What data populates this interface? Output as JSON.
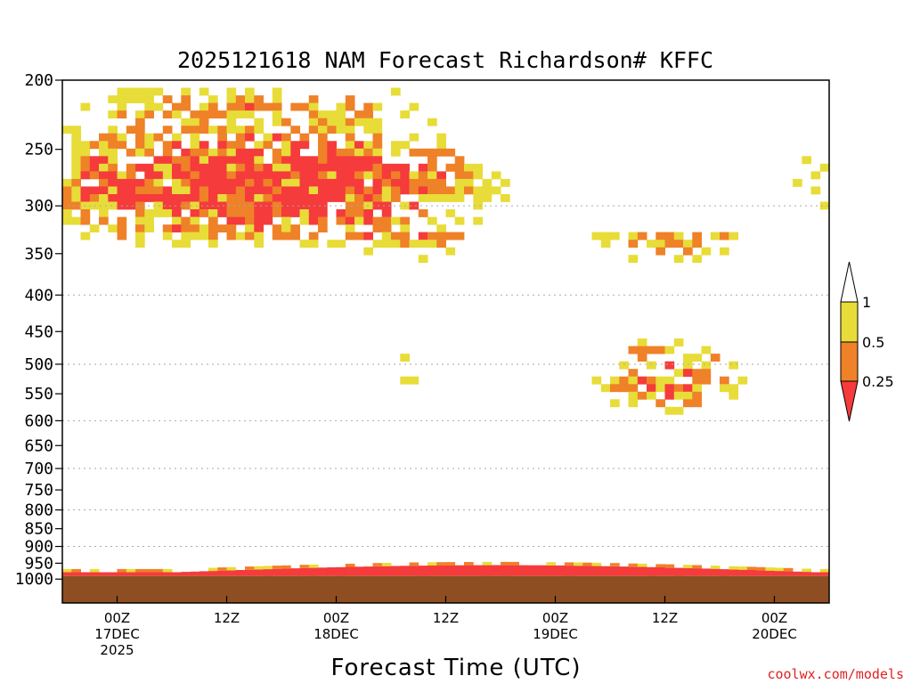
{
  "chart_data": {
    "type": "heatmap",
    "title": "2025121618 NAM Forecast Richardson# KFFC",
    "xlabel": "Forecast Time (UTC)",
    "ylabel": "",
    "y_scale": "log-pressure",
    "y_axis_inverted": true,
    "ylim": [
      1000,
      200
    ],
    "y_ticks": [
      200,
      250,
      300,
      350,
      400,
      450,
      500,
      550,
      600,
      650,
      700,
      750,
      800,
      850,
      900,
      950,
      1000
    ],
    "y_gridlines": [
      300,
      400,
      500,
      600,
      700,
      800,
      900
    ],
    "grid": true,
    "x_ticks": [
      {
        "lines": [
          "00Z",
          "17DEC",
          "2025"
        ]
      },
      {
        "lines": [
          "12Z"
        ]
      },
      {
        "lines": [
          "00Z",
          "18DEC"
        ]
      },
      {
        "lines": [
          "12Z"
        ]
      },
      {
        "lines": [
          "00Z",
          "19DEC"
        ]
      },
      {
        "lines": [
          "12Z"
        ]
      },
      {
        "lines": [
          "00Z",
          "20DEC"
        ]
      }
    ],
    "x_tick_hours": [
      6,
      18,
      30,
      42,
      54,
      66,
      78
    ],
    "xlim_hours": [
      0,
      84
    ],
    "colorbar": {
      "labels": [
        "1",
        "0.5",
        "0.25"
      ],
      "levels": [
        0.25,
        0.5,
        1.0
      ],
      "colors": {
        "lt_0_25": "#f53b3b",
        "0_25_to_0_5": "#ef8128",
        "0_5_to_1": "#e8dc38",
        "gt_1": "#ffffff"
      }
    },
    "ground_color": "#8e4e22",
    "surface_pressure_hpa": 990,
    "legend_placement": "right",
    "colors_note": "Ri < 0.25 red, 0.25-0.5 orange, 0.5-1 yellow, > 1 white"
  },
  "credit": "coolwx.com/models"
}
